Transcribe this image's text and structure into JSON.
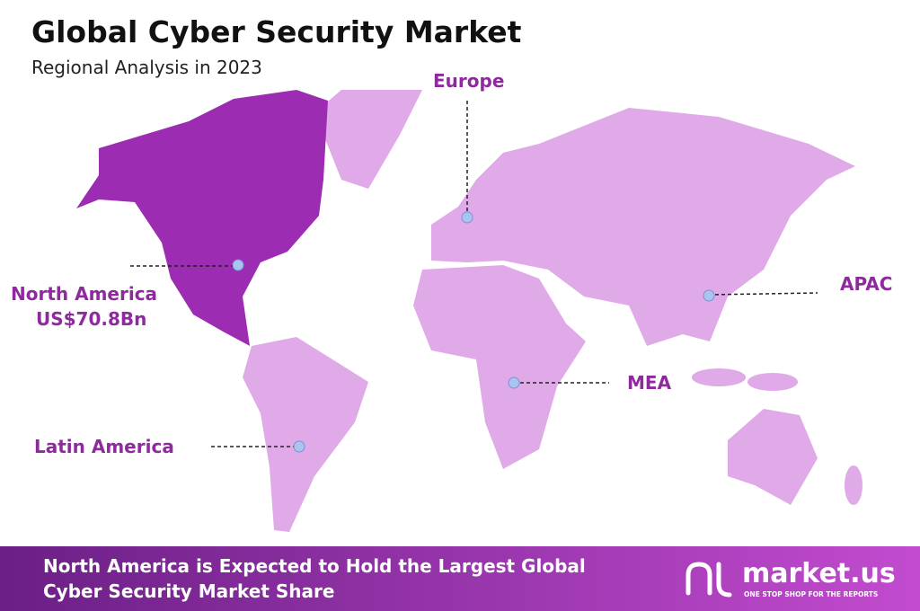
{
  "header": {
    "title": "Global Cyber Security Market",
    "subtitle": "Regional Analysis in 2023"
  },
  "regions": [
    {
      "label": "North America",
      "value": "US$70.8Bn"
    },
    {
      "label": "Europe"
    },
    {
      "label": "APAC"
    },
    {
      "label": "MEA"
    },
    {
      "label": "Latin America"
    }
  ],
  "footer": {
    "lines": [
      "North America is Expected to Hold the Largest Global",
      "Cyber Security Market Share"
    ],
    "logo": "market.us",
    "tagline": "ONE STOP SHOP FOR THE REPORTS"
  }
}
